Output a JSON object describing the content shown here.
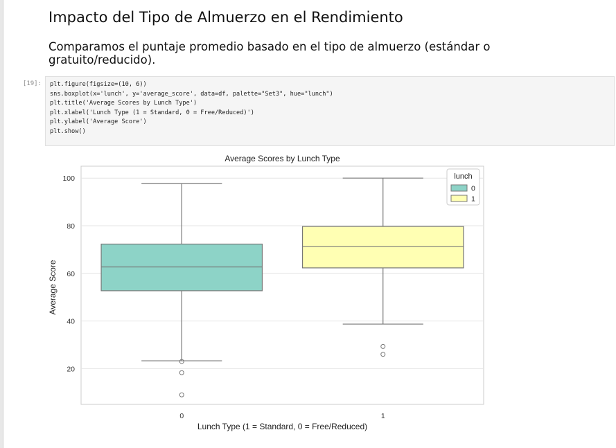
{
  "notebook": {
    "heading": "Impacto del Tipo de Almuerzo en el Rendimiento",
    "subheading_line1": "Comparamos el puntaje promedio basado en el tipo de almuerzo (estándar o",
    "subheading_line2": "gratuito/reducido).",
    "cell": {
      "prompt": "[19]:",
      "code_lines": [
        "plt.figure(figsize=(10, 6))",
        "sns.boxplot(x='lunch', y='average_score', data=df, palette=\"Set3\", hue=\"lunch\")",
        "plt.title('Average Scores by Lunch Type')",
        "plt.xlabel('Lunch Type (1 = Standard, 0 = Free/Reduced)')",
        "plt.ylabel('Average Score')",
        "plt.show()"
      ]
    }
  },
  "chart_data": {
    "type": "box",
    "title": "Average Scores by Lunch Type",
    "xlabel": "Lunch Type (1 = Standard, 0 = Free/Reduced)",
    "ylabel": "Average Score",
    "categories": [
      "0",
      "1"
    ],
    "ylim": [
      5,
      105
    ],
    "yticks": [
      20,
      40,
      60,
      80,
      100
    ],
    "grid": true,
    "legend": {
      "title": "lunch",
      "placement": "top-right",
      "entries": [
        "0",
        "1"
      ]
    },
    "colors": {
      "0": "#8dd3c7",
      "1": "#ffffb3"
    },
    "series": [
      {
        "category": "0",
        "whisker_low": 23.3,
        "q1": 52.7,
        "median": 62.7,
        "q3": 72.3,
        "whisker_high": 97.7,
        "outliers": [
          23,
          18.3,
          9
        ]
      },
      {
        "category": "1",
        "whisker_low": 38.7,
        "q1": 62.3,
        "median": 71.3,
        "q3": 79.7,
        "whisker_high": 100,
        "outliers": [
          29.3,
          26
        ]
      }
    ]
  }
}
